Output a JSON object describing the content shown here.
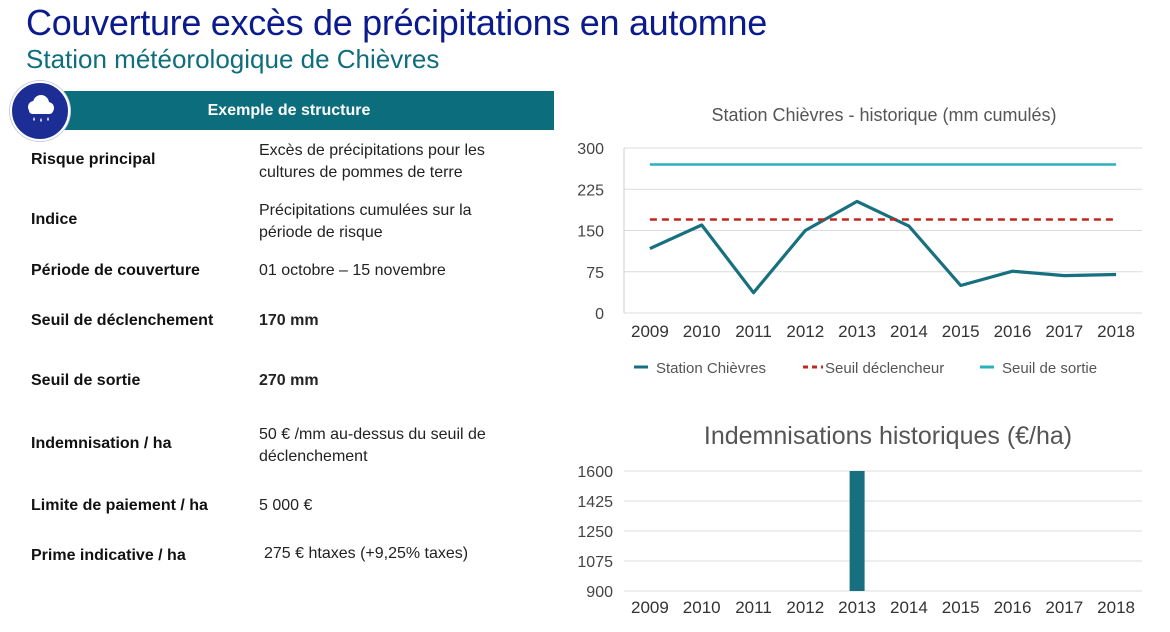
{
  "header": {
    "title": "Couverture excès de précipitations en automne",
    "subtitle": "Station météorologique de Chièvres"
  },
  "structure": {
    "banner_label": "Exemple de structure",
    "badge_icon": "rain-cloud-icon",
    "rows": [
      {
        "label": "Risque principal",
        "value": "Excès de précipitations pour les cultures de pommes de terre"
      },
      {
        "label": "Indice",
        "value": "Précipitations cumulées sur la période de risque"
      },
      {
        "label": "Période de couverture",
        "value": "01 octobre – 15 novembre"
      },
      {
        "label": "Seuil de déclenchement",
        "value": "170 mm"
      },
      {
        "label": "Seuil de sortie",
        "value": "270 mm"
      },
      {
        "label": "Indemnisation / ha",
        "value": "50 € /mm au-dessus du seuil de déclenchement"
      },
      {
        "label": "Limite de paiement / ha",
        "value": "5 000 €"
      },
      {
        "label": "Prime indicative / ha",
        "value": "275 € htaxes (+9,25% taxes)"
      }
    ]
  },
  "colors": {
    "title": "#0b1a8c",
    "subtitle": "#0f6e7c",
    "banner": "#0c6e7d",
    "badge": "#1d2d96",
    "station": "#17707f",
    "trigger": "#c0281e",
    "exit": "#2ab1bd",
    "bar": "#17707f"
  },
  "chart_data": [
    {
      "type": "line",
      "title": "Station Chièvres - historique (mm cumulés)",
      "x": [
        "2009",
        "2010",
        "2011",
        "2012",
        "2013",
        "2014",
        "2015",
        "2016",
        "2017",
        "2018"
      ],
      "ylim": [
        0,
        300
      ],
      "yticks": [
        0,
        75,
        150,
        225,
        300
      ],
      "grid": true,
      "legend": "bottom",
      "series": [
        {
          "name": "Station Chièvres",
          "style": "solid",
          "values": [
            117,
            160,
            37,
            150,
            203,
            158,
            50,
            76,
            68,
            70
          ]
        },
        {
          "name": "Seuil déclencheur",
          "style": "dashed",
          "values": [
            170,
            170,
            170,
            170,
            170,
            170,
            170,
            170,
            170,
            170
          ]
        },
        {
          "name": "Seuil de sortie",
          "style": "solid",
          "values": [
            270,
            270,
            270,
            270,
            270,
            270,
            270,
            270,
            270,
            270
          ]
        }
      ]
    },
    {
      "type": "bar",
      "title": "Indemnisations historiques (€/ha)",
      "categories": [
        "2009",
        "2010",
        "2011",
        "2012",
        "2013",
        "2014",
        "2015",
        "2016",
        "2017",
        "2018"
      ],
      "values": [
        0,
        0,
        0,
        0,
        1650,
        0,
        0,
        0,
        0,
        0
      ],
      "ylim": [
        900,
        1600
      ],
      "yticks": [
        900,
        1075,
        1250,
        1425,
        1600
      ],
      "grid": true
    }
  ]
}
